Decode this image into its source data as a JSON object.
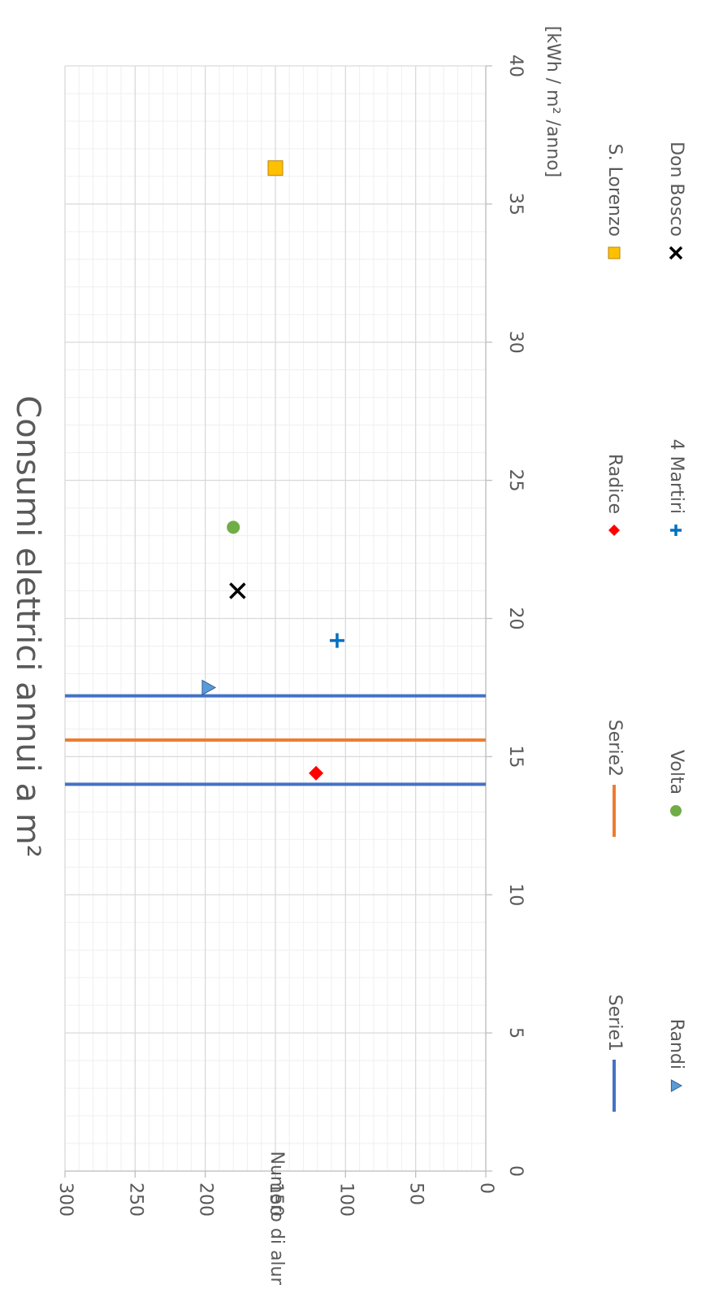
{
  "chart_data": {
    "type": "scatter",
    "orientation": "rotated-90-clockwise",
    "title": "Consumi elettrici annui a m²",
    "xlabel": "[kWh / m² /anno]",
    "ylabel": "Numero di alunni",
    "xlim": [
      0,
      40
    ],
    "ylim": [
      0,
      300
    ],
    "x_ticks": [
      "0",
      "5",
      "10",
      "15",
      "20",
      "25",
      "30",
      "35",
      "40"
    ],
    "y_ticks": [
      "0",
      "50",
      "100",
      "150",
      "200",
      "250",
      "300"
    ],
    "grid": true,
    "legend_placement": "right",
    "series": [
      {
        "name": "Serie1",
        "kind": "vline",
        "x": [
          14.0,
          17.2
        ],
        "color": "#4472c4"
      },
      {
        "name": "Serie2",
        "kind": "vline",
        "x": [
          15.6
        ],
        "color": "#ed7d31"
      },
      {
        "name": "Randi",
        "kind": "point",
        "marker": "triangle",
        "x": 17.5,
        "y": 198,
        "color": "#5b9bd5"
      },
      {
        "name": "Radice",
        "kind": "point",
        "marker": "diamond",
        "x": 14.4,
        "y": 121,
        "color": "#ff0000"
      },
      {
        "name": "S. Lorenzo",
        "kind": "point",
        "marker": "square",
        "x": 36.3,
        "y": 150,
        "color": "#ffc000"
      },
      {
        "name": "Volta",
        "kind": "point",
        "marker": "circle",
        "x": 23.3,
        "y": 180,
        "color": "#70ad47"
      },
      {
        "name": "4 Martiri",
        "kind": "point",
        "marker": "plus",
        "x": 19.2,
        "y": 106,
        "color": "#0070c0"
      },
      {
        "name": "Don Bosco",
        "kind": "point",
        "marker": "x",
        "x": 21.0,
        "y": 177,
        "color": "#000000"
      }
    ],
    "legend_rows": [
      [
        "Serie1",
        "Serie2",
        "Radice",
        "S. Lorenzo"
      ],
      [
        "Randi",
        "Volta",
        "4 Martiri",
        "Don Bosco"
      ]
    ]
  }
}
